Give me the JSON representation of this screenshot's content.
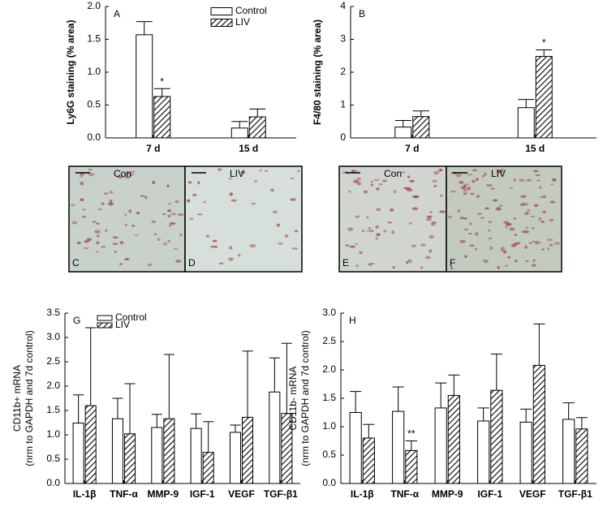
{
  "chart_data": [
    {
      "type": "bar",
      "panel_label": "A",
      "ylabel": "Ly6G staining (% area)",
      "categories": [
        "7 d",
        "15 d"
      ],
      "series": [
        {
          "name": "Control",
          "color": "#ffffff",
          "pattern": "solid",
          "values": [
            1.57,
            0.15
          ],
          "errors": [
            0.2,
            0.1
          ]
        },
        {
          "name": "LIV",
          "color": "#ffffff",
          "pattern": "hatch",
          "values": [
            0.63,
            0.32
          ],
          "errors": [
            0.12,
            0.12
          ]
        }
      ],
      "ylim": [
        0,
        2
      ],
      "yticks": [
        {
          "value": 0,
          "label": "0.0"
        },
        {
          "value": 0.5,
          "label": "0.5"
        },
        {
          "value": 1,
          "label": "1.0"
        },
        {
          "value": 1.5,
          "label": "1.5"
        },
        {
          "value": 2,
          "label": "2.0"
        }
      ],
      "legend": "upper right",
      "annotations": [
        {
          "text": "*",
          "category": 0,
          "series": 1
        }
      ]
    },
    {
      "type": "bar",
      "panel_label": "B",
      "ylabel": "F4/80 staining (% area)",
      "categories": [
        "7 d",
        "15 d"
      ],
      "series": [
        {
          "name": "Control",
          "color": "#ffffff",
          "pattern": "solid",
          "values": [
            0.33,
            0.92
          ],
          "errors": [
            0.2,
            0.25
          ]
        },
        {
          "name": "LIV",
          "color": "#ffffff",
          "pattern": "hatch",
          "values": [
            0.65,
            2.48
          ],
          "errors": [
            0.17,
            0.2
          ]
        }
      ],
      "ylim": [
        0,
        4
      ],
      "yticks": [
        0,
        1,
        2,
        3,
        4
      ],
      "annotations": [
        {
          "text": "*",
          "category": 1,
          "series": 1
        }
      ]
    },
    {
      "type": "bar",
      "panel_label": "G",
      "ylabel": [
        "CD11b+ mRNA",
        "(nrm to GAPDH and 7d control)"
      ],
      "categories": [
        "IL-1β",
        "TNF-α",
        "MMP-9",
        "IGF-1",
        "VEGF",
        "TGF-β1"
      ],
      "series": [
        {
          "name": "Control",
          "color": "#ffffff",
          "pattern": "solid",
          "values": [
            1.24,
            1.33,
            1.15,
            1.13,
            1.05,
            1.88
          ],
          "errors": [
            0.58,
            0.42,
            0.27,
            0.3,
            0.15,
            0.7
          ]
        },
        {
          "name": "LIV",
          "color": "#ffffff",
          "pattern": "hatch",
          "values": [
            1.6,
            1.02,
            1.33,
            0.64,
            1.36,
            1.44
          ],
          "errors": [
            1.6,
            1.03,
            1.32,
            0.63,
            1.36,
            1.44
          ]
        }
      ],
      "ylim": [
        0,
        3.5
      ],
      "yticks": [
        {
          "value": 0,
          "label": "0.0"
        },
        {
          "value": 0.5,
          "label": "0.5"
        },
        {
          "value": 1,
          "label": "1.0"
        },
        {
          "value": 1.5,
          "label": "1.5"
        },
        {
          "value": 2,
          "label": "2.0"
        },
        {
          "value": 2.5,
          "label": "2.5"
        },
        {
          "value": 3,
          "label": "3.0"
        },
        {
          "value": 3.5,
          "label": "3.5"
        }
      ],
      "legend": "upper left"
    },
    {
      "type": "bar",
      "panel_label": "H",
      "ylabel": [
        "CD11b- mRNA",
        "(nrm to GAPDH and 7d control)"
      ],
      "categories": [
        "IL-1β",
        "TNF-α",
        "MMP-9",
        "IGF-1",
        "VEGF",
        "TGF-β1"
      ],
      "series": [
        {
          "name": "Control",
          "color": "#ffffff",
          "pattern": "solid",
          "values": [
            1.25,
            1.27,
            1.33,
            1.1,
            1.08,
            1.13
          ],
          "errors": [
            0.37,
            0.43,
            0.44,
            0.23,
            0.23,
            0.29
          ]
        },
        {
          "name": "LIV",
          "color": "#ffffff",
          "pattern": "hatch",
          "values": [
            0.8,
            0.58,
            1.55,
            1.64,
            2.08,
            0.96
          ],
          "errors": [
            0.24,
            0.17,
            0.36,
            0.64,
            0.73,
            0.2
          ]
        }
      ],
      "ylim": [
        0,
        3
      ],
      "yticks": [
        {
          "value": 0,
          "label": "0.0"
        },
        {
          "value": 0.5,
          "label": "0.5"
        },
        {
          "value": 1,
          "label": "1.0"
        },
        {
          "value": 1.5,
          "label": "1.5"
        },
        {
          "value": 2,
          "label": "2.0"
        },
        {
          "value": 2.5,
          "label": "2.5"
        },
        {
          "value": 3,
          "label": "3.0"
        }
      ],
      "annotations": [
        {
          "text": "**",
          "category": 1,
          "series": 1
        }
      ]
    }
  ],
  "micrographs": [
    {
      "panel": "C",
      "label": "Con"
    },
    {
      "panel": "D",
      "label": "LIV"
    },
    {
      "panel": "E",
      "label": "Con"
    },
    {
      "panel": "F",
      "label": "LIV"
    }
  ]
}
